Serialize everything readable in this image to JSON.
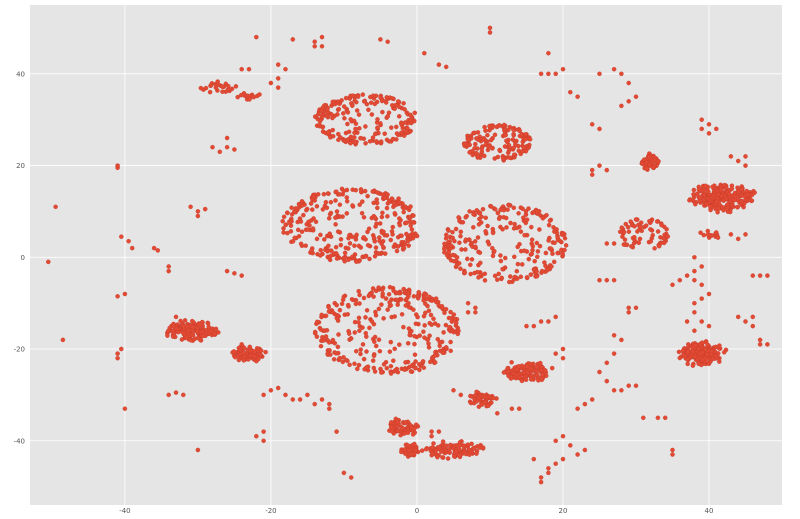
{
  "chart_data": {
    "type": "scatter",
    "title": "",
    "xlabel": "",
    "ylabel": "",
    "xlim": [
      -53,
      50
    ],
    "ylim": [
      -54,
      55
    ],
    "grid": true,
    "xticks": [
      -40,
      -20,
      0,
      20,
      40
    ],
    "yticks": [
      40,
      20,
      0,
      -20,
      -40
    ],
    "xtick_labels": [
      "-40",
      "-20",
      "0",
      "20",
      "40"
    ],
    "ytick_labels": [
      "40",
      "20",
      "0",
      "-20",
      "-40"
    ],
    "colors": {
      "background": "#e5e5e5",
      "grid": "#ffffff",
      "point": "#e24a33",
      "point_edge": "#c0392b"
    },
    "clusters": [
      {
        "shape": "ring",
        "cx": -7,
        "cy": 30,
        "rx": 7,
        "ry": 5.5,
        "n": 220
      },
      {
        "shape": "ring",
        "cx": 11,
        "cy": 25,
        "rx": 4.6,
        "ry": 4,
        "n": 150
      },
      {
        "shape": "ring",
        "cx": -9,
        "cy": 7,
        "rx": 9.5,
        "ry": 8,
        "n": 320
      },
      {
        "shape": "ring",
        "cx": 12,
        "cy": 3,
        "rx": 8.5,
        "ry": 8.5,
        "n": 260
      },
      {
        "shape": "ring",
        "cx": 31,
        "cy": 5,
        "rx": 3.5,
        "ry": 3.5,
        "n": 70
      },
      {
        "shape": "ring",
        "cx": -4,
        "cy": -16,
        "rx": 10,
        "ry": 9.5,
        "n": 330
      },
      {
        "shape": "blob",
        "cx": 42,
        "cy": 13,
        "rx": 5,
        "ry": 3.5,
        "n": 220
      },
      {
        "shape": "blob",
        "cx": 39,
        "cy": -21,
        "rx": 3.5,
        "ry": 3,
        "n": 170
      },
      {
        "shape": "blob",
        "cx": -31,
        "cy": -16,
        "rx": 4,
        "ry": 2.5,
        "n": 150
      },
      {
        "shape": "blob",
        "cx": -23,
        "cy": -21,
        "rx": 2.5,
        "ry": 2,
        "n": 90
      },
      {
        "shape": "blob",
        "cx": 15,
        "cy": -25,
        "rx": 4,
        "ry": 2.5,
        "n": 110
      },
      {
        "shape": "blob",
        "cx": 9,
        "cy": -31,
        "rx": 2.5,
        "ry": 2,
        "n": 60
      },
      {
        "shape": "blob",
        "cx": 5,
        "cy": -42,
        "rx": 5,
        "ry": 2,
        "n": 110
      },
      {
        "shape": "blob",
        "cx": -2,
        "cy": -37,
        "rx": 2.5,
        "ry": 2,
        "n": 70
      },
      {
        "shape": "blob",
        "cx": -1,
        "cy": -42,
        "rx": 1.5,
        "ry": 1.6,
        "n": 40
      },
      {
        "shape": "blob",
        "cx": 32,
        "cy": 21,
        "rx": 1.5,
        "ry": 2.2,
        "n": 50
      },
      {
        "shape": "blob",
        "cx": -27,
        "cy": 37,
        "rx": 3,
        "ry": 1.5,
        "n": 25
      },
      {
        "shape": "blob",
        "cx": -23,
        "cy": 35,
        "rx": 2,
        "ry": 1,
        "n": 15
      },
      {
        "shape": "blob",
        "cx": 40,
        "cy": 5,
        "rx": 2,
        "ry": 1,
        "n": 15
      }
    ],
    "scatter_points": [
      [
        -50.5,
        -1
      ],
      [
        -49.5,
        11
      ],
      [
        -48.5,
        -18
      ],
      [
        -41,
        19.5
      ],
      [
        -41,
        20
      ],
      [
        -40.5,
        4.5
      ],
      [
        -39.5,
        3.5
      ],
      [
        -39,
        2
      ],
      [
        -41,
        -8.5
      ],
      [
        -40,
        -8
      ],
      [
        -41,
        -21
      ],
      [
        -41,
        -22
      ],
      [
        -40.5,
        -20
      ],
      [
        -40,
        -33
      ],
      [
        -36,
        2
      ],
      [
        -35.5,
        1.5
      ],
      [
        -34,
        -2
      ],
      [
        -34,
        -3
      ],
      [
        -34,
        -30
      ],
      [
        -33,
        -29.5
      ],
      [
        -32,
        -30
      ],
      [
        -31,
        11
      ],
      [
        -30,
        10
      ],
      [
        -29,
        10.5
      ],
      [
        -30,
        9
      ],
      [
        -30,
        -42
      ],
      [
        -28,
        24
      ],
      [
        -27,
        23
      ],
      [
        -26,
        26
      ],
      [
        -26,
        24
      ],
      [
        -25,
        23.5
      ],
      [
        -26,
        -3
      ],
      [
        -25,
        -3.5
      ],
      [
        -24,
        -4
      ],
      [
        -24,
        41
      ],
      [
        -23,
        41
      ],
      [
        -22,
        48
      ],
      [
        -20,
        38
      ],
      [
        -19,
        39
      ],
      [
        -18,
        41
      ],
      [
        -19,
        37
      ],
      [
        -19,
        42
      ],
      [
        -17,
        47.5
      ],
      [
        -14,
        47
      ],
      [
        -14,
        46
      ],
      [
        -13,
        48
      ],
      [
        -13,
        46
      ],
      [
        -20,
        -29
      ],
      [
        -21,
        -30
      ],
      [
        -19,
        -28.5
      ],
      [
        -18,
        -30
      ],
      [
        -17,
        -31
      ],
      [
        -16,
        -31
      ],
      [
        -14,
        -32
      ],
      [
        -13,
        -31
      ],
      [
        -12,
        -32
      ],
      [
        -12,
        -33
      ],
      [
        -15,
        -30
      ],
      [
        -22,
        -39
      ],
      [
        -21,
        -38
      ],
      [
        -21,
        -40
      ],
      [
        -11,
        -38
      ],
      [
        -10,
        -47
      ],
      [
        -9,
        -48
      ],
      [
        -5,
        47.5
      ],
      [
        -4,
        47
      ],
      [
        1,
        44.5
      ],
      [
        3,
        42
      ],
      [
        4,
        41.5
      ],
      [
        10,
        50
      ],
      [
        10,
        49
      ],
      [
        7,
        -10
      ],
      [
        8,
        -11
      ],
      [
        8,
        -12
      ],
      [
        7,
        -12
      ],
      [
        15,
        -15
      ],
      [
        16,
        -15
      ],
      [
        17,
        -14
      ],
      [
        18,
        -14
      ],
      [
        19,
        -13
      ],
      [
        17,
        40
      ],
      [
        18,
        40
      ],
      [
        19,
        40
      ],
      [
        18,
        44.5
      ],
      [
        20,
        41
      ],
      [
        21,
        36
      ],
      [
        22,
        35
      ],
      [
        24,
        29
      ],
      [
        25,
        28
      ],
      [
        24,
        19
      ],
      [
        25,
        20
      ],
      [
        24,
        18
      ],
      [
        26,
        19
      ],
      [
        25,
        40
      ],
      [
        27,
        41
      ],
      [
        28,
        40
      ],
      [
        29,
        38
      ],
      [
        28,
        33
      ],
      [
        29,
        34
      ],
      [
        30,
        35
      ],
      [
        26,
        3
      ],
      [
        27,
        3
      ],
      [
        25,
        -5
      ],
      [
        26,
        -5
      ],
      [
        27,
        -5
      ],
      [
        29,
        -12
      ],
      [
        30,
        -11
      ],
      [
        29,
        -11
      ],
      [
        27,
        -17
      ],
      [
        28,
        -18
      ],
      [
        27,
        -21
      ],
      [
        26,
        -23
      ],
      [
        25,
        -25
      ],
      [
        26,
        -27
      ],
      [
        27,
        -29
      ],
      [
        28,
        -29
      ],
      [
        29,
        -28
      ],
      [
        30,
        -28
      ],
      [
        24,
        -31
      ],
      [
        23,
        -32
      ],
      [
        22,
        -33
      ],
      [
        20,
        -39
      ],
      [
        19,
        -40
      ],
      [
        21,
        -41
      ],
      [
        23,
        -42
      ],
      [
        22,
        -43
      ],
      [
        20,
        -44
      ],
      [
        19,
        -45
      ],
      [
        18,
        -46
      ],
      [
        17,
        -48
      ],
      [
        17,
        -49
      ],
      [
        18,
        -47
      ],
      [
        16,
        -44
      ],
      [
        20,
        -20
      ],
      [
        19,
        -21
      ],
      [
        20,
        -22
      ],
      [
        31,
        -35
      ],
      [
        33,
        -35
      ],
      [
        34,
        -35
      ],
      [
        35,
        -42
      ],
      [
        35,
        -43
      ],
      [
        35,
        -6
      ],
      [
        36,
        -5
      ],
      [
        37,
        -4
      ],
      [
        38,
        -5
      ],
      [
        39,
        -6
      ],
      [
        38,
        -3
      ],
      [
        39,
        -2
      ],
      [
        38,
        0
      ],
      [
        38,
        -10
      ],
      [
        38,
        -12
      ],
      [
        37,
        -14
      ],
      [
        39,
        -14
      ],
      [
        40,
        -15
      ],
      [
        38,
        -16
      ],
      [
        39,
        -9
      ],
      [
        40,
        -8
      ],
      [
        39,
        30
      ],
      [
        40,
        29
      ],
      [
        41,
        28
      ],
      [
        40,
        27
      ],
      [
        39,
        28
      ],
      [
        43,
        5
      ],
      [
        44,
        4
      ],
      [
        45,
        5
      ],
      [
        46,
        -15
      ],
      [
        45,
        -14
      ],
      [
        46,
        -13
      ],
      [
        44,
        -13
      ],
      [
        46,
        -4
      ],
      [
        47,
        -4
      ],
      [
        48,
        -4
      ],
      [
        47,
        -19
      ],
      [
        48,
        -19
      ],
      [
        47,
        -18
      ],
      [
        43,
        22
      ],
      [
        44,
        21
      ],
      [
        45,
        20
      ],
      [
        45,
        22
      ],
      [
        13,
        -33
      ],
      [
        14,
        -33
      ],
      [
        11,
        -34
      ],
      [
        5,
        -29
      ],
      [
        6,
        -30
      ],
      [
        2,
        -38
      ],
      [
        3,
        -38
      ],
      [
        2,
        -39
      ],
      [
        -33,
        -13
      ],
      [
        -32,
        -15
      ],
      [
        -24,
        -19
      ]
    ]
  }
}
